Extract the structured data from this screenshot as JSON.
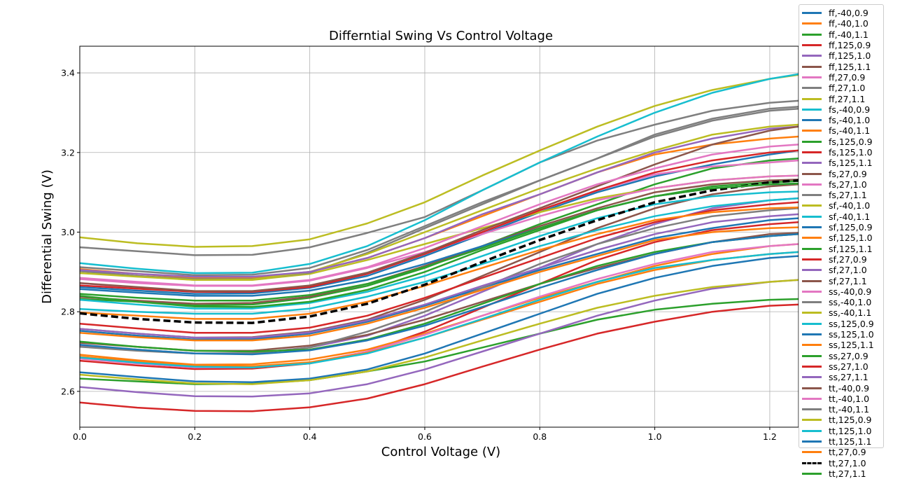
{
  "chart_data": {
    "type": "line",
    "title": "Differntial Swing Vs Control Voltage",
    "xlabel": "Control Voltage (V)",
    "ylabel": "Differential Swing (V)",
    "xlim": [
      0.0,
      1.25
    ],
    "ylim": [
      2.51,
      3.467
    ],
    "xticks": [
      "0.0",
      "0.2",
      "0.4",
      "0.6",
      "0.8",
      "1.0",
      "1.2"
    ],
    "yticks": [
      "2.6",
      "2.8",
      "3.0",
      "3.2",
      "3.4"
    ],
    "grid": true,
    "legend_position": "outside-right",
    "x": [
      0.0,
      0.1,
      0.2,
      0.3,
      0.4,
      0.5,
      0.6,
      0.7,
      0.8,
      0.9,
      1.0,
      1.1,
      1.2,
      1.25
    ],
    "series": [
      {
        "name": "ff,-40,0.9",
        "color": "#1f77b4",
        "values": [
          2.862,
          2.853,
          2.845,
          2.846,
          2.86,
          2.89,
          2.94,
          2.995,
          3.05,
          3.1,
          3.14,
          3.17,
          3.195,
          3.205
        ]
      },
      {
        "name": "ff,-40,1.0",
        "color": "#ff7f0e",
        "values": [
          2.907,
          2.895,
          2.885,
          2.886,
          2.9,
          2.935,
          2.985,
          3.04,
          3.095,
          3.15,
          3.195,
          3.22,
          3.235,
          3.24
        ]
      },
      {
        "name": "ff,-40,1.1",
        "color": "#2ca02c",
        "values": [
          2.832,
          2.825,
          2.816,
          2.818,
          2.835,
          2.865,
          2.91,
          2.965,
          3.02,
          3.07,
          3.12,
          3.16,
          3.18,
          3.185
        ]
      },
      {
        "name": "ff,125,0.9",
        "color": "#d62728",
        "values": [
          2.677,
          2.665,
          2.656,
          2.657,
          2.67,
          2.7,
          2.75,
          2.81,
          2.87,
          2.93,
          2.975,
          3.005,
          3.02,
          3.025
        ]
      },
      {
        "name": "ff,125,1.0",
        "color": "#9467bd",
        "values": [
          2.715,
          2.705,
          2.695,
          2.696,
          2.71,
          2.74,
          2.79,
          2.85,
          2.91,
          2.97,
          3.02,
          3.06,
          3.08,
          3.085
        ]
      },
      {
        "name": "ff,125,1.1",
        "color": "#8c564b",
        "values": [
          2.757,
          2.745,
          2.735,
          2.736,
          2.75,
          2.78,
          2.83,
          2.89,
          2.95,
          3.01,
          3.06,
          3.095,
          3.115,
          3.12
        ]
      },
      {
        "name": "ff,27,0.9",
        "color": "#e377c2",
        "values": [
          2.872,
          2.86,
          2.85,
          2.851,
          2.865,
          2.895,
          2.945,
          3.0,
          3.055,
          3.105,
          3.145,
          3.165,
          3.175,
          3.18
        ]
      },
      {
        "name": "ff,27,1.0",
        "color": "#7f7f7f",
        "values": [
          2.962,
          2.952,
          2.942,
          2.943,
          2.962,
          2.998,
          3.038,
          3.105,
          3.175,
          3.23,
          3.27,
          3.305,
          3.325,
          3.33
        ]
      },
      {
        "name": "ff,27,1.1",
        "color": "#bcbd22",
        "values": [
          2.987,
          2.972,
          2.963,
          2.965,
          2.982,
          3.022,
          3.075,
          3.142,
          3.205,
          3.265,
          3.317,
          3.357,
          3.385,
          3.395
        ]
      },
      {
        "name": "fs,-40,0.9",
        "color": "#17becf",
        "values": [
          2.922,
          2.908,
          2.897,
          2.898,
          2.92,
          2.965,
          3.03,
          3.105,
          3.175,
          3.24,
          3.3,
          3.35,
          3.385,
          3.397
        ]
      },
      {
        "name": "fs,-40,1.0",
        "color": "#1f77b4",
        "values": [
          2.752,
          2.74,
          2.73,
          2.731,
          2.745,
          2.775,
          2.815,
          2.86,
          2.905,
          2.945,
          2.985,
          3.01,
          3.03,
          3.035
        ]
      },
      {
        "name": "fs,-40,1.1",
        "color": "#ff7f0e",
        "values": [
          2.692,
          2.678,
          2.667,
          2.668,
          2.68,
          2.705,
          2.745,
          2.79,
          2.835,
          2.875,
          2.915,
          2.945,
          2.965,
          2.97
        ]
      },
      {
        "name": "fs,125,0.9",
        "color": "#2ca02c",
        "values": [
          2.632,
          2.625,
          2.618,
          2.619,
          2.628,
          2.65,
          2.675,
          2.71,
          2.745,
          2.78,
          2.805,
          2.82,
          2.83,
          2.832
        ]
      },
      {
        "name": "fs,125,1.0",
        "color": "#d62728",
        "values": [
          2.572,
          2.559,
          2.551,
          2.55,
          2.56,
          2.582,
          2.618,
          2.662,
          2.705,
          2.745,
          2.775,
          2.8,
          2.815,
          2.818
        ]
      },
      {
        "name": "fs,125,1.1",
        "color": "#9467bd",
        "values": [
          2.611,
          2.598,
          2.588,
          2.587,
          2.595,
          2.618,
          2.655,
          2.7,
          2.745,
          2.79,
          2.828,
          2.858,
          2.875,
          2.88
        ]
      },
      {
        "name": "fs,27,0.9",
        "color": "#8c564b",
        "values": [
          2.722,
          2.712,
          2.702,
          2.702,
          2.715,
          2.742,
          2.78,
          2.825,
          2.87,
          2.91,
          2.945,
          2.975,
          2.995,
          2.998
        ]
      },
      {
        "name": "fs,27,1.0",
        "color": "#e377c2",
        "values": [
          2.682,
          2.67,
          2.66,
          2.66,
          2.672,
          2.7,
          2.742,
          2.79,
          2.838,
          2.882,
          2.92,
          2.95,
          2.965,
          2.97
        ]
      },
      {
        "name": "fs,27,1.1",
        "color": "#7f7f7f",
        "values": [
          2.712,
          2.702,
          2.695,
          2.695,
          2.71,
          2.75,
          2.8,
          2.86,
          2.92,
          2.97,
          3.01,
          3.04,
          3.055,
          3.06
        ]
      },
      {
        "name": "sf,-40,1.0",
        "color": "#bcbd22",
        "values": [
          2.902,
          2.89,
          2.88,
          2.88,
          2.895,
          2.93,
          2.97,
          3.01,
          3.05,
          3.085,
          3.11,
          3.13,
          3.14,
          3.142
        ]
      },
      {
        "name": "sf,-40,1.1",
        "color": "#17becf",
        "values": [
          2.807,
          2.8,
          2.795,
          2.795,
          2.808,
          2.838,
          2.875,
          2.92,
          2.965,
          3.005,
          3.04,
          3.065,
          3.08,
          3.085
        ]
      },
      {
        "name": "sf,125,0.9",
        "color": "#1f77b4",
        "values": [
          2.648,
          2.636,
          2.625,
          2.623,
          2.632,
          2.655,
          2.695,
          2.745,
          2.795,
          2.845,
          2.885,
          2.915,
          2.935,
          2.94
        ]
      },
      {
        "name": "sf,125,1.0",
        "color": "#ff7f0e",
        "values": [
          2.687,
          2.675,
          2.665,
          2.663,
          2.673,
          2.697,
          2.735,
          2.78,
          2.825,
          2.87,
          2.905,
          2.93,
          2.945,
          2.95
        ]
      },
      {
        "name": "sf,125,1.1",
        "color": "#2ca02c",
        "values": [
          2.725,
          2.712,
          2.702,
          2.7,
          2.705,
          2.73,
          2.77,
          2.82,
          2.87,
          2.915,
          2.95,
          2.975,
          2.99,
          2.995
        ]
      },
      {
        "name": "sf,27,0.9",
        "color": "#d62728",
        "values": [
          2.77,
          2.758,
          2.747,
          2.747,
          2.76,
          2.79,
          2.835,
          2.885,
          2.935,
          2.985,
          3.025,
          3.055,
          3.07,
          3.075
        ]
      },
      {
        "name": "sf,27,1.0",
        "color": "#9467bd",
        "values": [
          2.757,
          2.745,
          2.735,
          2.735,
          2.748,
          2.778,
          2.818,
          2.865,
          2.91,
          2.955,
          2.995,
          3.025,
          3.04,
          3.045
        ]
      },
      {
        "name": "sf,27,1.1",
        "color": "#8c564b",
        "values": [
          2.837,
          2.828,
          2.82,
          2.822,
          2.838,
          2.87,
          2.915,
          2.965,
          3.015,
          3.06,
          3.1,
          3.12,
          3.13,
          3.132
        ]
      },
      {
        "name": "ss,-40,0.9",
        "color": "#e377c2",
        "values": [
          2.882,
          2.872,
          2.865,
          2.865,
          2.878,
          2.91,
          2.95,
          2.995,
          3.04,
          3.08,
          3.11,
          3.13,
          3.14,
          3.142
        ]
      },
      {
        "name": "ss,-40,1.0",
        "color": "#7f7f7f",
        "values": [
          2.902,
          2.89,
          2.882,
          2.882,
          2.898,
          2.948,
          3.01,
          3.07,
          3.13,
          3.185,
          3.24,
          3.28,
          3.305,
          3.31
        ]
      },
      {
        "name": "ss,-40,1.1",
        "color": "#bcbd22",
        "values": [
          2.897,
          2.888,
          2.88,
          2.881,
          2.9,
          2.945,
          3.0,
          3.055,
          3.11,
          3.16,
          3.205,
          3.245,
          3.265,
          3.27
        ]
      },
      {
        "name": "ss,125,0.9",
        "color": "#17becf",
        "values": [
          2.83,
          2.818,
          2.808,
          2.808,
          2.822,
          2.85,
          2.89,
          2.94,
          2.99,
          3.035,
          3.07,
          3.09,
          3.1,
          3.102
        ]
      },
      {
        "name": "ss,125,1.0",
        "color": "#1f77b4",
        "values": [
          2.857,
          2.848,
          2.84,
          2.84,
          2.853,
          2.88,
          2.92,
          2.965,
          3.01,
          3.055,
          3.09,
          3.11,
          3.12,
          3.122
        ]
      },
      {
        "name": "ss,125,1.1",
        "color": "#ff7f0e",
        "values": [
          2.798,
          2.79,
          2.782,
          2.782,
          2.795,
          2.825,
          2.865,
          2.91,
          2.955,
          2.995,
          3.03,
          3.05,
          3.06,
          3.062
        ]
      },
      {
        "name": "ss,27,0.9",
        "color": "#2ca02c",
        "values": [
          2.845,
          2.835,
          2.828,
          2.828,
          2.842,
          2.87,
          2.912,
          2.96,
          3.01,
          3.055,
          3.09,
          3.115,
          3.125,
          3.128
        ]
      },
      {
        "name": "ss,27,1.0",
        "color": "#d62728",
        "values": [
          2.866,
          2.858,
          2.85,
          2.85,
          2.862,
          2.895,
          2.945,
          3.0,
          3.055,
          3.105,
          3.15,
          3.18,
          3.2,
          3.205
        ]
      },
      {
        "name": "ss,27,1.1",
        "color": "#9467bd",
        "values": [
          2.905,
          2.895,
          2.888,
          2.888,
          2.9,
          2.935,
          2.985,
          3.045,
          3.095,
          3.15,
          3.2,
          3.235,
          3.26,
          3.265
        ]
      },
      {
        "name": "tt,-40,0.9",
        "color": "#8c564b",
        "values": [
          2.872,
          2.862,
          2.852,
          2.852,
          2.866,
          2.898,
          2.948,
          3.005,
          3.06,
          3.115,
          3.17,
          3.22,
          3.255,
          3.265
        ]
      },
      {
        "name": "tt,-40,1.0",
        "color": "#e377c2",
        "values": [
          2.885,
          2.875,
          2.866,
          2.866,
          2.88,
          2.912,
          2.96,
          3.015,
          3.07,
          3.12,
          3.16,
          3.195,
          3.215,
          3.22
        ]
      },
      {
        "name": "tt,-40,1.1",
        "color": "#7f7f7f",
        "values": [
          2.912,
          2.902,
          2.892,
          2.893,
          2.91,
          2.955,
          3.015,
          3.075,
          3.13,
          3.185,
          3.245,
          3.285,
          3.31,
          3.315
        ]
      },
      {
        "name": "tt,125,0.9",
        "color": "#bcbd22",
        "values": [
          2.642,
          2.63,
          2.62,
          2.618,
          2.628,
          2.65,
          2.685,
          2.728,
          2.77,
          2.81,
          2.84,
          2.862,
          2.875,
          2.88
        ]
      },
      {
        "name": "tt,125,1.0",
        "color": "#17becf",
        "values": [
          2.685,
          2.672,
          2.662,
          2.66,
          2.67,
          2.695,
          2.735,
          2.782,
          2.83,
          2.875,
          2.91,
          2.93,
          2.945,
          2.95
        ]
      },
      {
        "name": "tt,125,1.1",
        "color": "#1f77b4",
        "values": [
          2.717,
          2.705,
          2.695,
          2.693,
          2.703,
          2.728,
          2.765,
          2.812,
          2.86,
          2.905,
          2.945,
          2.975,
          2.99,
          2.995
        ]
      },
      {
        "name": "tt,27,0.9",
        "color": "#ff7f0e",
        "values": [
          2.747,
          2.736,
          2.728,
          2.728,
          2.74,
          2.77,
          2.81,
          2.855,
          2.9,
          2.94,
          2.98,
          3.0,
          3.01,
          3.012
        ]
      },
      {
        "name": "tt,27,1.0",
        "color": "#000000",
        "dashed": true,
        "values": [
          2.796,
          2.782,
          2.773,
          2.772,
          2.788,
          2.82,
          2.868,
          2.925,
          2.98,
          3.03,
          3.075,
          3.105,
          3.125,
          3.13
        ]
      },
      {
        "name": "tt,27,1.1",
        "color": "#2ca02c",
        "values": [
          2.84,
          2.825,
          2.813,
          2.812,
          2.825,
          2.855,
          2.9,
          2.955,
          3.005,
          3.055,
          3.09,
          3.11,
          3.12,
          3.122
        ]
      }
    ]
  }
}
